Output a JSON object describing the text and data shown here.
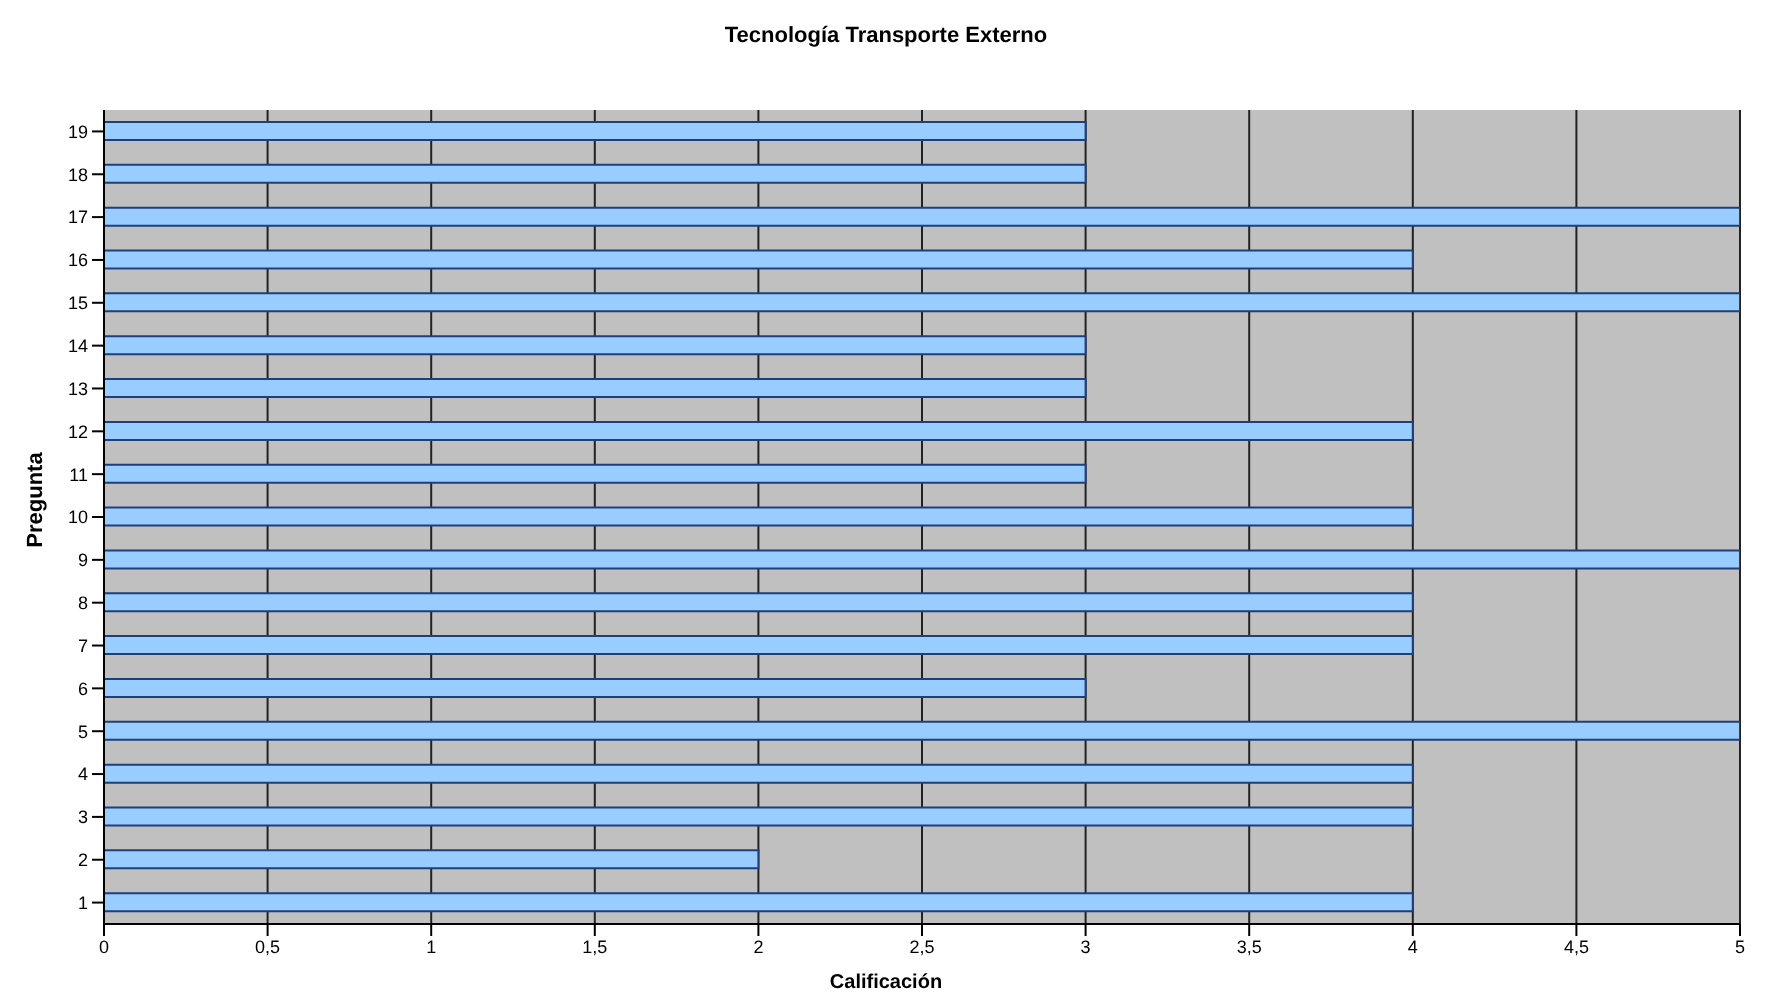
{
  "chart_data": {
    "type": "bar",
    "orientation": "horizontal",
    "title": "Tecnología Transporte Externo",
    "xlabel": "Calificación",
    "ylabel": "Pregunta",
    "categories": [
      "19",
      "18",
      "17",
      "16",
      "15",
      "14",
      "13",
      "12",
      "11",
      "10",
      "9",
      "8",
      "7",
      "6",
      "5",
      "4",
      "3",
      "2",
      "1"
    ],
    "values": [
      3,
      3,
      5,
      4,
      5,
      3,
      3,
      4,
      3,
      4,
      5,
      4,
      4,
      3,
      5,
      4,
      4,
      2,
      4
    ],
    "color": "#99ccff",
    "xlim": [
      0,
      5
    ],
    "xticks": [
      0,
      {
        "value": 0.5,
        "label": "0,5"
      },
      1,
      {
        "value": 1.5,
        "label": "1,5"
      },
      2,
      {
        "value": 2.5,
        "label": "2,5"
      },
      3,
      {
        "value": 3.5,
        "label": "3,5"
      },
      4,
      {
        "value": 4.5,
        "label": "4,5"
      },
      5
    ],
    "grid": "x"
  }
}
